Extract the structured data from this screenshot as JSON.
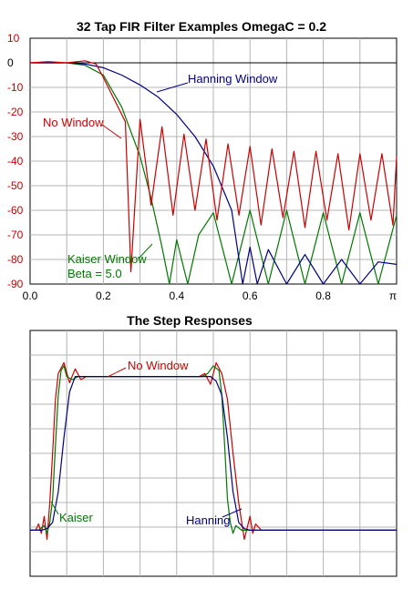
{
  "chart_data": [
    {
      "type": "line",
      "title": "32 Tap FIR Filter Examples   OmegaC = 0.2",
      "xlabel": "",
      "ylabel": "",
      "xlim": [
        0,
        1
      ],
      "ylim": [
        -90,
        10
      ],
      "x_ticks": [
        0,
        0.2,
        0.4,
        0.6,
        0.8,
        1.0
      ],
      "x_tick_labels": [
        "0.0",
        "0.2",
        "0.4",
        "0.6",
        "0.8",
        "π"
      ],
      "y_ticks": [
        10,
        0,
        -10,
        -20,
        -30,
        -40,
        -50,
        -60,
        -70,
        -80,
        -90
      ],
      "y_tick_labels": [
        "10",
        "0",
        "-10",
        "-20",
        "-30",
        "-40",
        "-50",
        "-60",
        "-70",
        "-80",
        "-90"
      ],
      "y_tick_colors": [
        "#cc0000",
        "#000000",
        "#cc0000",
        "#cc0000",
        "#cc0000",
        "#cc0000",
        "#cc0000",
        "#cc0000",
        "#cc0000",
        "#cc0000",
        "#cc0000"
      ],
      "grid": true,
      "annotations": [
        {
          "text": "Hanning Window",
          "color": "#000080"
        },
        {
          "text": "No Window",
          "color": "#cc0000"
        },
        {
          "text": "Kaiser Window",
          "color": "#007700"
        },
        {
          "text": "Beta = 5.0",
          "color": "#007700"
        }
      ],
      "series": [
        {
          "name": "No Window",
          "color": "#cc0000",
          "x": [
            0,
            0.05,
            0.1,
            0.15,
            0.18,
            0.2,
            0.22,
            0.24,
            0.26,
            0.275,
            0.3,
            0.33,
            0.36,
            0.39,
            0.42,
            0.45,
            0.48,
            0.51,
            0.54,
            0.57,
            0.6,
            0.63,
            0.66,
            0.69,
            0.72,
            0.75,
            0.78,
            0.81,
            0.84,
            0.87,
            0.9,
            0.93,
            0.96,
            0.99,
            1.0
          ],
          "y": [
            0,
            0.5,
            0,
            0.8,
            -0.5,
            -6,
            -12,
            -18,
            -24,
            -85,
            -23,
            -58,
            -26,
            -62,
            -29,
            -60,
            -31,
            -64,
            -33,
            -62,
            -34,
            -66,
            -35,
            -63,
            -36,
            -67,
            -36,
            -64,
            -37,
            -68,
            -37,
            -64,
            -37,
            -66,
            -38
          ]
        },
        {
          "name": "Hanning Window",
          "color": "#000080",
          "x": [
            0,
            0.1,
            0.15,
            0.2,
            0.25,
            0.3,
            0.35,
            0.4,
            0.45,
            0.5,
            0.55,
            0.58,
            0.6,
            0.62,
            0.65,
            0.7,
            0.75,
            0.8,
            0.85,
            0.9,
            0.95,
            1.0
          ],
          "y": [
            0,
            0,
            -0.5,
            -2,
            -5,
            -9,
            -14,
            -21,
            -30,
            -42,
            -60,
            -90,
            -75,
            -90,
            -76,
            -90,
            -78,
            -90,
            -80,
            -90,
            -81,
            -82
          ]
        },
        {
          "name": "Kaiser Window",
          "color": "#007700",
          "x": [
            0,
            0.1,
            0.15,
            0.2,
            0.25,
            0.3,
            0.33,
            0.36,
            0.38,
            0.4,
            0.43,
            0.46,
            0.5,
            0.55,
            0.6,
            0.65,
            0.7,
            0.75,
            0.8,
            0.85,
            0.9,
            0.95,
            1.0
          ],
          "y": [
            0,
            0,
            -1,
            -5,
            -18,
            -38,
            -55,
            -75,
            -90,
            -72,
            -90,
            -70,
            -61,
            -90,
            -60,
            -90,
            -60,
            -90,
            -61,
            -90,
            -61,
            -90,
            -62
          ]
        }
      ]
    },
    {
      "type": "line",
      "title": "The Step Responses",
      "xlabel": "",
      "ylabel": "",
      "xlim": [
        0,
        130
      ],
      "ylim": [
        -0.3,
        1.3
      ],
      "grid": true,
      "annotations": [
        {
          "text": "No Window",
          "color": "#cc0000"
        },
        {
          "text": "Kaiser",
          "color": "#007700"
        },
        {
          "text": "Hanning",
          "color": "#000080"
        }
      ],
      "series": [
        {
          "name": "No Window",
          "color": "#cc0000",
          "x": [
            0,
            2,
            3,
            4,
            5,
            6,
            7,
            8,
            9,
            10,
            12,
            14,
            16,
            18,
            20,
            60,
            62,
            64,
            66,
            68,
            70,
            72,
            74,
            76,
            78,
            79,
            80,
            82,
            85,
            130
          ],
          "y": [
            0,
            0,
            0.04,
            -0.02,
            0.09,
            -0.06,
            0.18,
            0.5,
            0.85,
            1.02,
            1.09,
            0.96,
            1.05,
            0.98,
            1,
            1,
            1.02,
            0.95,
            1.09,
            1.02,
            0.85,
            0.5,
            0.18,
            -0.06,
            0.09,
            -0.02,
            0.04,
            0,
            0,
            0
          ]
        },
        {
          "name": "Hanning Window",
          "color": "#000080",
          "x": [
            0,
            4,
            6,
            8,
            10,
            12,
            14,
            16,
            18,
            20,
            62,
            64,
            66,
            68,
            70,
            72,
            74,
            76,
            78,
            80,
            82,
            130
          ],
          "y": [
            0,
            0,
            0.01,
            0.05,
            0.25,
            0.6,
            0.9,
            1.0,
            1.0,
            1.0,
            1.0,
            1.0,
            0.97,
            0.88,
            0.6,
            0.25,
            0.05,
            0.01,
            0,
            0,
            0,
            0
          ]
        },
        {
          "name": "Kaiser Window",
          "color": "#007700",
          "x": [
            0,
            3,
            5,
            6,
            7,
            8,
            9,
            10,
            11,
            12,
            13,
            15,
            17,
            20,
            61,
            63,
            65,
            67,
            68,
            69,
            70,
            71,
            72,
            73,
            75,
            78,
            130
          ],
          "y": [
            0,
            0,
            0.03,
            -0.02,
            0.05,
            0.2,
            0.55,
            0.88,
            1.04,
            1.07,
            1.0,
            0.98,
            1.0,
            1,
            1,
            1.02,
            1.07,
            1.04,
            0.88,
            0.55,
            0.2,
            0.05,
            -0.02,
            0.03,
            0,
            0,
            0
          ]
        }
      ]
    }
  ]
}
